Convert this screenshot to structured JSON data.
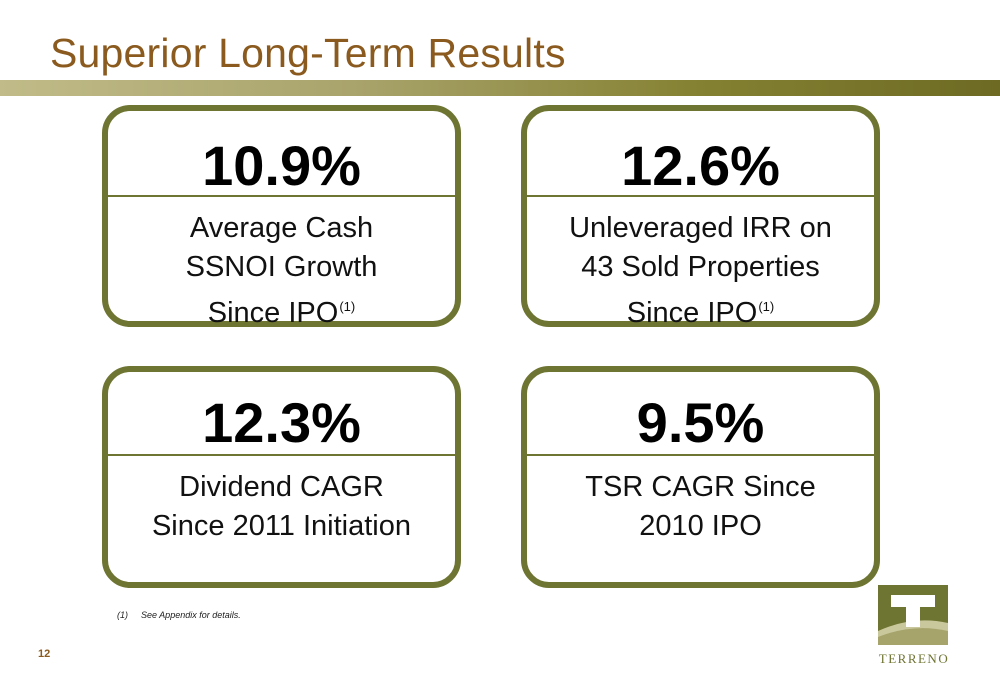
{
  "slide": {
    "title": "Superior Long-Term Results",
    "page_number": "12"
  },
  "cards": [
    {
      "value": "10.9%",
      "lines": [
        "Average Cash",
        "SSNOI Growth",
        "Since IPO"
      ],
      "footnote_ref": "(1)"
    },
    {
      "value": "12.6%",
      "lines": [
        "Unleveraged IRR on",
        "43 Sold Properties",
        "Since IPO"
      ],
      "footnote_ref": "(1)"
    },
    {
      "value": "12.3%",
      "lines": [
        "Dividend CAGR",
        "Since 2011 Initiation"
      ]
    },
    {
      "value": "9.5%",
      "lines": [
        "TSR CAGR Since",
        "2010 IPO"
      ]
    }
  ],
  "footnote": {
    "marker": "(1)",
    "text": "See Appendix for details."
  },
  "logo": {
    "text": "TERRENO",
    "colors": {
      "primary": "#6e7431",
      "light": "#c9c89c"
    }
  },
  "colors": {
    "title": "#8a5a1e",
    "card_border": "#6e7431"
  }
}
